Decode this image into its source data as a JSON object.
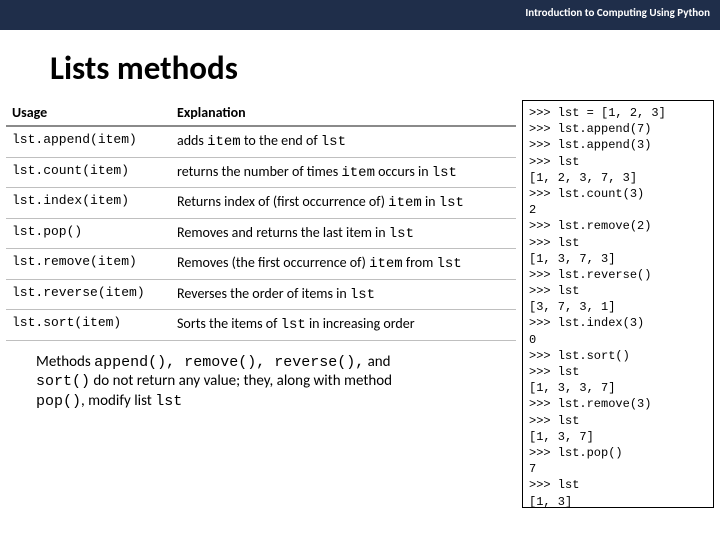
{
  "header": {
    "course": "Introduction to Computing Using Python"
  },
  "title": "Lists methods",
  "table": {
    "col1": "Usage",
    "col2": "Explanation",
    "rows": [
      {
        "usage": "lst.append(item)",
        "p1": "adds ",
        "c1": "item",
        "p2": " to the end of ",
        "c2": "lst",
        "p3": ""
      },
      {
        "usage": "lst.count(item)",
        "p1": "returns the number of times ",
        "c1": "item",
        "p2": " occurs in ",
        "c2": "lst",
        "p3": ""
      },
      {
        "usage": "lst.index(item)",
        "p1": "Returns index of (first occurrence of) ",
        "c1": "item",
        "p2": " in ",
        "c2": "lst",
        "p3": ""
      },
      {
        "usage": "lst.pop()",
        "p1": "Removes and returns the last item in ",
        "c1": "lst",
        "p2": "",
        "c2": "",
        "p3": ""
      },
      {
        "usage": "lst.remove(item)",
        "p1": "Removes (the first occurrence of) ",
        "c1": "item",
        "p2": " from ",
        "c2": "lst",
        "p3": ""
      },
      {
        "usage": "lst.reverse(item)",
        "p1": "Reverses the order of items in ",
        "c1": "lst",
        "p2": "",
        "c2": "",
        "p3": ""
      },
      {
        "usage": "lst.sort(item)",
        "p1": "Sorts the items of ",
        "c1": "lst",
        "p2": " in increasing order",
        "c2": "",
        "p3": ""
      }
    ]
  },
  "terminal": ">>> lst = [1, 2, 3]\n>>> lst.append(7)\n>>> lst.append(3)\n>>> lst\n[1, 2, 3, 7, 3]\n>>> lst.count(3)\n2\n>>> lst.remove(2)\n>>> lst\n[1, 3, 7, 3]\n>>> lst.reverse()\n>>> lst\n[3, 7, 3, 1]\n>>> lst.index(3)\n0\n>>> lst.sort()\n>>> lst\n[1, 3, 3, 7]\n>>> lst.remove(3)\n>>> lst\n[1, 3, 7]\n>>> lst.pop()\n7\n>>> lst\n[1, 3]",
  "note": {
    "p1": "Methods ",
    "c1": "append(), remove(), reverse(),",
    "p2": " and ",
    "c2": "sort()",
    "p3": " do not return any value; they, along with method ",
    "c3": "pop()",
    "p4": ", modify list ",
    "c4": "lst"
  }
}
